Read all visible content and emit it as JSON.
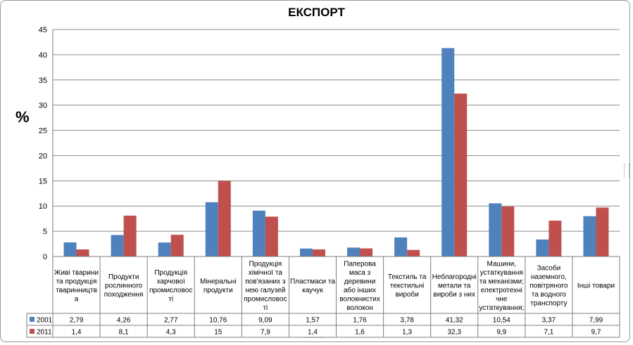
{
  "chart_data": {
    "type": "bar",
    "title": "ЕКСПОРТ",
    "xlabel": "",
    "ylabel": "%",
    "ylim": [
      0,
      45
    ],
    "yticks": [
      0,
      5,
      10,
      15,
      20,
      25,
      30,
      35,
      40,
      45
    ],
    "grid": true,
    "legend": "data-table",
    "categories": [
      [
        "Живі тварини",
        "та продукція",
        "тваринництв",
        "а"
      ],
      [
        "Продукти",
        "рослинного",
        "походження"
      ],
      [
        "Продукція",
        "харчової",
        "промисловос",
        "ті"
      ],
      [
        "Мінеральні",
        "продукти"
      ],
      [
        "Продукція",
        "хімічної та",
        "пов'язаних з",
        "нею галузей",
        "промисловос",
        "ті"
      ],
      [
        "Пластмаси та",
        "каучук"
      ],
      [
        "Паперова",
        "маса з",
        "деревини",
        "або інших",
        "волокнистих",
        "волокон"
      ],
      [
        "Текстиль та",
        "текстильні",
        "вироби"
      ],
      [
        "Неблагородні",
        "метали та",
        "вироби з них"
      ],
      [
        "Машини,",
        "устаткування",
        "та механізми;",
        "електротехні",
        "чне",
        "устаткування;"
      ],
      [
        "Засоби",
        "наземного,",
        "повітряного",
        "та водного",
        "транспорту"
      ],
      [
        "Інші товари"
      ]
    ],
    "series": [
      {
        "name": "2001",
        "color": "#4f81bd",
        "values": [
          2.79,
          4.26,
          2.77,
          10.76,
          9.09,
          1.57,
          1.76,
          3.78,
          41.32,
          10.54,
          3.37,
          7.99
        ],
        "labels": [
          "2,79",
          "4,26",
          "2,77",
          "10,76",
          "9,09",
          "1,57",
          "1,76",
          "3,78",
          "41,32",
          "10,54",
          "3,37",
          "7,99"
        ]
      },
      {
        "name": "2011",
        "color": "#c0504d",
        "values": [
          1.4,
          8.1,
          4.3,
          15,
          7.9,
          1.4,
          1.6,
          1.3,
          32.3,
          9.9,
          7.1,
          9.7
        ],
        "labels": [
          "1,4",
          "8,1",
          "4,3",
          "15",
          "7,9",
          "1,4",
          "1,6",
          "1,3",
          "32,3",
          "9,9",
          "7,1",
          "9,7"
        ]
      }
    ]
  }
}
